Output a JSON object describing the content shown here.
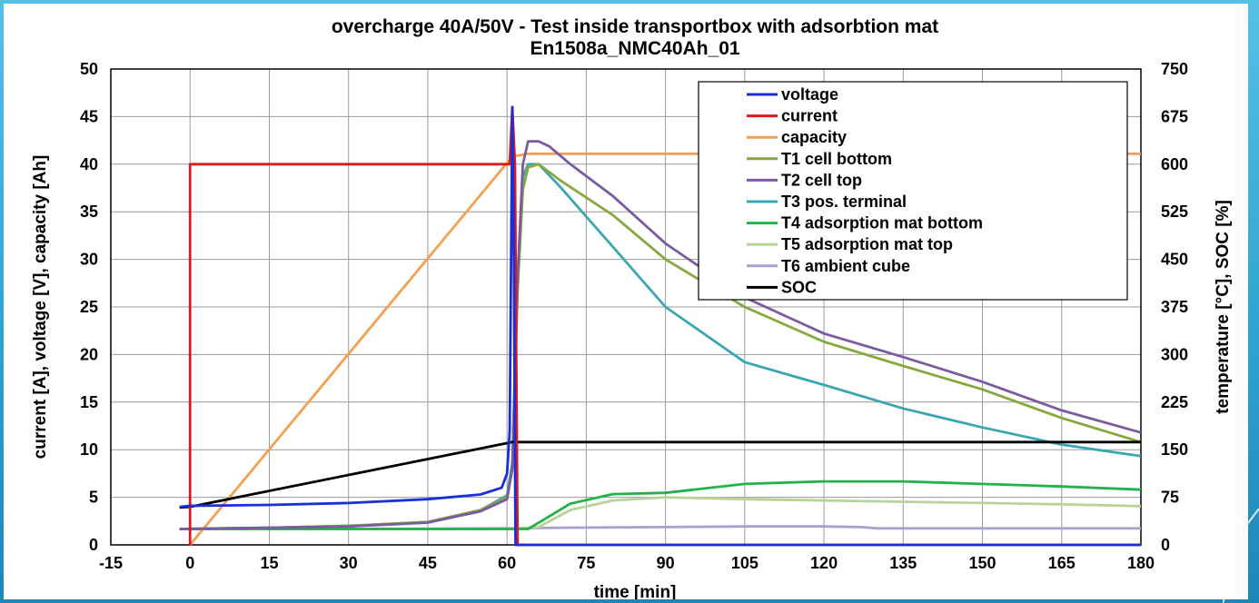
{
  "chart_data": {
    "type": "line",
    "title": "overcharge 40A/50V - Test inside transportbox with adsorbtion mat",
    "subtitle": "En1508a_NMC40Ah_01",
    "xlabel": "time [min]",
    "ylabel_left": "current [A], voltage [V], capacity [Ah]",
    "ylabel_right": "temperature [°C], SOC [%]",
    "xlim": [
      -15,
      180
    ],
    "ylim_left": [
      0,
      50
    ],
    "ylim_right": [
      0,
      750
    ],
    "x_ticks": [
      -15,
      0,
      15,
      30,
      45,
      60,
      75,
      90,
      105,
      120,
      135,
      150,
      165,
      180
    ],
    "y_left_ticks": [
      0,
      5,
      10,
      15,
      20,
      25,
      30,
      35,
      40,
      45,
      50
    ],
    "y_right_ticks": [
      0,
      75,
      150,
      225,
      300,
      375,
      450,
      525,
      600,
      675,
      750
    ],
    "grid": true,
    "legend_position": "top-right",
    "series": [
      {
        "name": "voltage",
        "axis": "left",
        "color": "#1a2fd6",
        "points": [
          [
            -2,
            4.0
          ],
          [
            0,
            4.1
          ],
          [
            15,
            4.2
          ],
          [
            30,
            4.4
          ],
          [
            45,
            4.8
          ],
          [
            55,
            5.3
          ],
          [
            59,
            6.0
          ],
          [
            60,
            7.5
          ],
          [
            60.5,
            12
          ],
          [
            61,
            46
          ],
          [
            61.3,
            30
          ],
          [
            61.6,
            0
          ],
          [
            180,
            0
          ]
        ]
      },
      {
        "name": "current",
        "axis": "left",
        "color": "#e01818",
        "points": [
          [
            0,
            0
          ],
          [
            0,
            40
          ],
          [
            30,
            40
          ],
          [
            45,
            40
          ],
          [
            55,
            40
          ],
          [
            60.5,
            40
          ],
          [
            61,
            46
          ],
          [
            61.5,
            40
          ],
          [
            62,
            0
          ],
          [
            180,
            0
          ]
        ]
      },
      {
        "name": "capacity",
        "axis": "left",
        "color": "#f4a04e",
        "points": [
          [
            0,
            0
          ],
          [
            61,
            40.8
          ],
          [
            64,
            41.1
          ],
          [
            120,
            41.1
          ],
          [
            180,
            41.1
          ]
        ]
      },
      {
        "name": "T1 cell bottom",
        "axis": "right",
        "color": "#86a83e",
        "points": [
          [
            -2,
            25
          ],
          [
            15,
            27
          ],
          [
            30,
            30
          ],
          [
            45,
            36
          ],
          [
            55,
            55
          ],
          [
            60,
            75
          ],
          [
            61,
            120
          ],
          [
            62,
            400
          ],
          [
            63,
            560
          ],
          [
            64,
            595
          ],
          [
            66,
            600
          ],
          [
            70,
            575
          ],
          [
            80,
            520
          ],
          [
            90,
            450
          ],
          [
            105,
            375
          ],
          [
            120,
            320
          ],
          [
            135,
            282
          ],
          [
            150,
            245
          ],
          [
            165,
            200
          ],
          [
            180,
            162
          ]
        ]
      },
      {
        "name": "T2 cell top",
        "axis": "right",
        "color": "#7a5aa0",
        "points": [
          [
            -2,
            25
          ],
          [
            15,
            27
          ],
          [
            30,
            29
          ],
          [
            45,
            35
          ],
          [
            55,
            53
          ],
          [
            60,
            72
          ],
          [
            61,
            120
          ],
          [
            62,
            420
          ],
          [
            63,
            600
          ],
          [
            64,
            636
          ],
          [
            66,
            636
          ],
          [
            68,
            628
          ],
          [
            72,
            600
          ],
          [
            80,
            550
          ],
          [
            90,
            475
          ],
          [
            105,
            390
          ],
          [
            120,
            333
          ],
          [
            135,
            296
          ],
          [
            150,
            257
          ],
          [
            165,
            212
          ],
          [
            180,
            177
          ]
        ]
      },
      {
        "name": "T3 pos. terminal",
        "axis": "right",
        "color": "#3aa6b2",
        "points": [
          [
            -2,
            25
          ],
          [
            15,
            27
          ],
          [
            30,
            30
          ],
          [
            45,
            36
          ],
          [
            55,
            55
          ],
          [
            60,
            78
          ],
          [
            61,
            130
          ],
          [
            62,
            420
          ],
          [
            63,
            580
          ],
          [
            64,
            600
          ],
          [
            66,
            600
          ],
          [
            70,
            565
          ],
          [
            80,
            470
          ],
          [
            90,
            375
          ],
          [
            105,
            288
          ],
          [
            120,
            252
          ],
          [
            135,
            215
          ],
          [
            150,
            185
          ],
          [
            165,
            158
          ],
          [
            180,
            140
          ]
        ]
      },
      {
        "name": "T4 adsorption mat bottom",
        "axis": "right",
        "color": "#21b24a",
        "points": [
          [
            -2,
            25
          ],
          [
            15,
            25
          ],
          [
            30,
            25
          ],
          [
            45,
            25
          ],
          [
            60,
            25
          ],
          [
            64,
            25
          ],
          [
            67,
            40
          ],
          [
            72,
            65
          ],
          [
            80,
            80
          ],
          [
            90,
            82
          ],
          [
            105,
            96
          ],
          [
            120,
            100
          ],
          [
            135,
            100
          ],
          [
            150,
            96
          ],
          [
            165,
            92
          ],
          [
            180,
            87
          ]
        ]
      },
      {
        "name": "T5 adsorption mat top",
        "axis": "right",
        "color": "#b8d39a",
        "points": [
          [
            -2,
            25
          ],
          [
            30,
            25
          ],
          [
            60,
            25
          ],
          [
            66,
            28
          ],
          [
            72,
            55
          ],
          [
            80,
            70
          ],
          [
            90,
            75
          ],
          [
            105,
            72
          ],
          [
            120,
            70
          ],
          [
            135,
            68
          ],
          [
            150,
            66
          ],
          [
            165,
            64
          ],
          [
            180,
            61
          ]
        ]
      },
      {
        "name": "T6 ambient cube",
        "axis": "right",
        "color": "#a99fd0",
        "points": [
          [
            -2,
            25
          ],
          [
            30,
            25
          ],
          [
            60,
            26
          ],
          [
            70,
            27
          ],
          [
            90,
            28
          ],
          [
            105,
            29
          ],
          [
            120,
            29
          ],
          [
            127,
            28
          ],
          [
            130,
            26
          ],
          [
            150,
            26
          ],
          [
            180,
            26
          ]
        ]
      },
      {
        "name": "SOC",
        "axis": "right",
        "color": "#000000",
        "points": [
          [
            -2,
            59
          ],
          [
            0,
            60
          ],
          [
            61,
            162
          ],
          [
            120,
            162
          ],
          [
            180,
            162
          ]
        ]
      }
    ]
  }
}
